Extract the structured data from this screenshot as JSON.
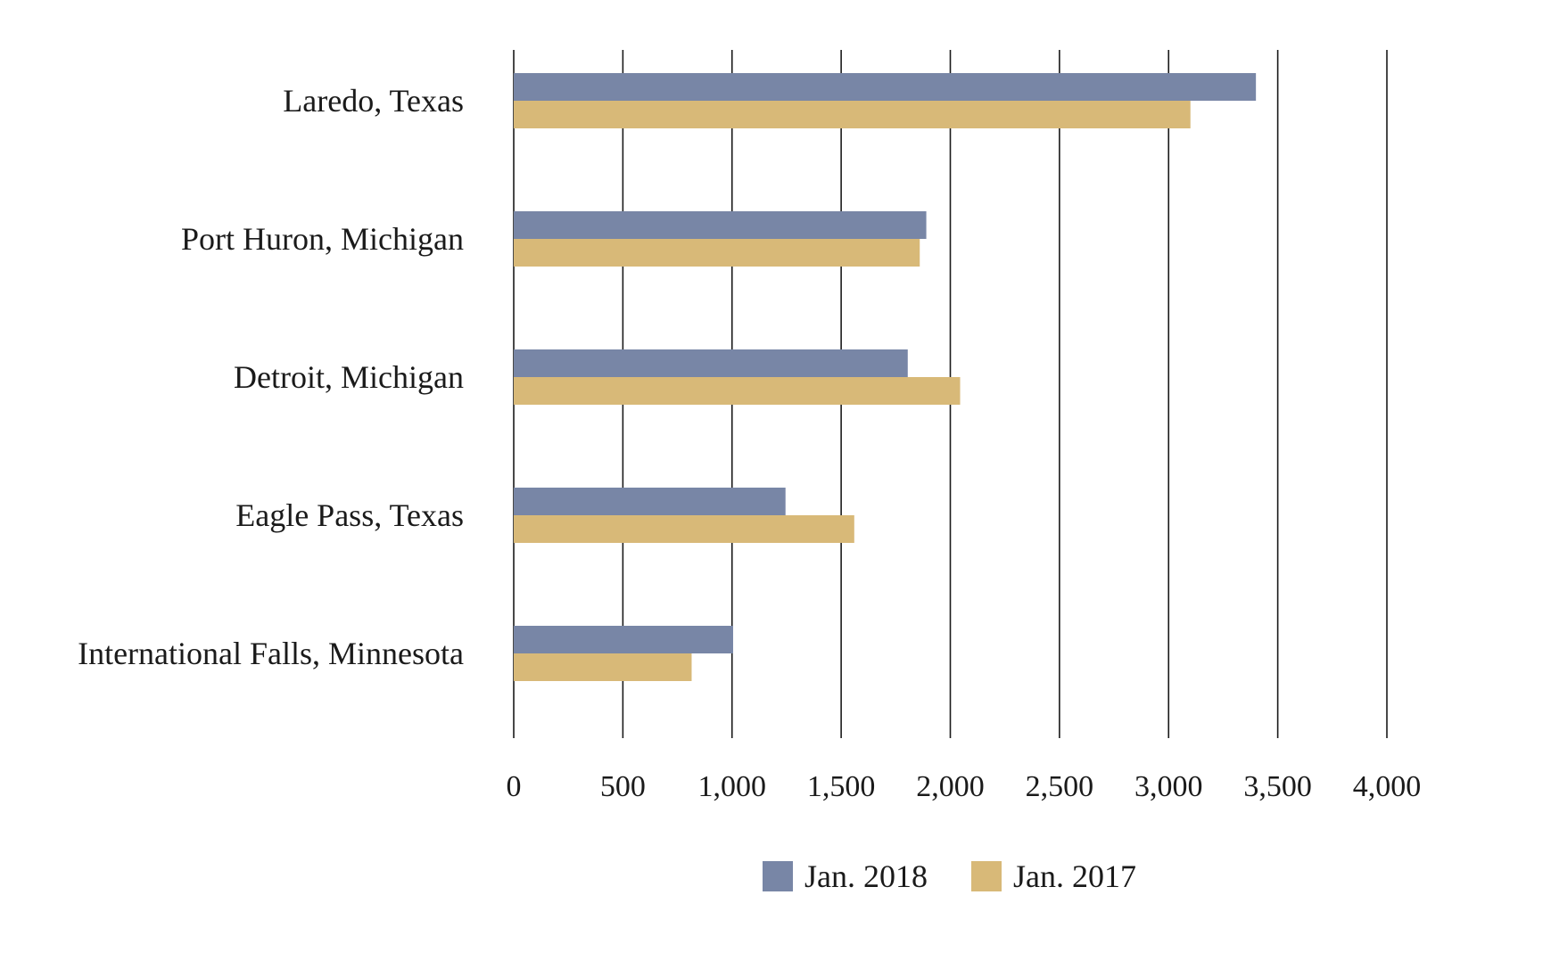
{
  "chart_data": {
    "type": "bar",
    "orientation": "horizontal",
    "categories": [
      "Laredo, Texas",
      "Port Huron, Michigan",
      "Detroit, Michigan",
      "Eagle Pass, Texas",
      "International Falls, Minnesota"
    ],
    "series": [
      {
        "name": "Jan. 2018",
        "color": "#7886a6",
        "values": [
          3400,
          1890,
          1805,
          1245,
          1005
        ]
      },
      {
        "name": "Jan. 2017",
        "color": "#d8b978",
        "values": [
          3100,
          1860,
          2045,
          1560,
          815
        ]
      }
    ],
    "xlim": [
      0,
      4000
    ],
    "xticks": [
      0,
      500,
      1000,
      1500,
      2000,
      2500,
      3000,
      3500,
      4000
    ],
    "xtick_labels": [
      "0",
      "500",
      "1,000",
      "1,500",
      "2,000",
      "2,500",
      "3,000",
      "3,500",
      "4,000"
    ],
    "grid": "vertical",
    "legend_position": "bottom-center"
  }
}
